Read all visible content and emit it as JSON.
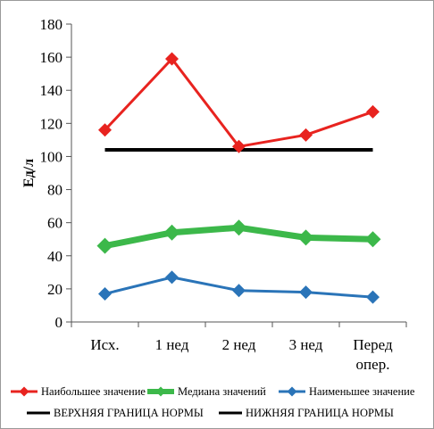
{
  "chart_data": {
    "type": "line",
    "ylabel": "Ед/л",
    "ylim": [
      0,
      180
    ],
    "ytick_step": 20,
    "categories": [
      [
        "Исх."
      ],
      [
        "1 нед"
      ],
      [
        "2 нед"
      ],
      [
        "3 нед"
      ],
      [
        "Перед",
        "опер."
      ]
    ],
    "grid": false,
    "legend_position": "bottom",
    "series": [
      {
        "name": "Наибольшее значение",
        "values": [
          116,
          159,
          106,
          113,
          127
        ],
        "color": "#e8231f",
        "marker": "diamond",
        "width": 3
      },
      {
        "name": "Медиана значений",
        "values": [
          46,
          54,
          57,
          51,
          50
        ],
        "color": "#3cb84a",
        "marker": "diamond",
        "width": 7
      },
      {
        "name": "Наименьшее значение",
        "values": [
          17,
          27,
          19,
          18,
          15
        ],
        "color": "#2a74b8",
        "marker": "diamond",
        "width": 3
      }
    ],
    "reference_lines": [
      {
        "name": "ВЕРХНЯЯ ГРАНИЦА НОРМЫ",
        "value": null,
        "color": "#000000"
      },
      {
        "name": "НИЖНЯЯ ГРАНИЦА НОРМЫ",
        "value": 104,
        "color": "#000000"
      }
    ]
  }
}
